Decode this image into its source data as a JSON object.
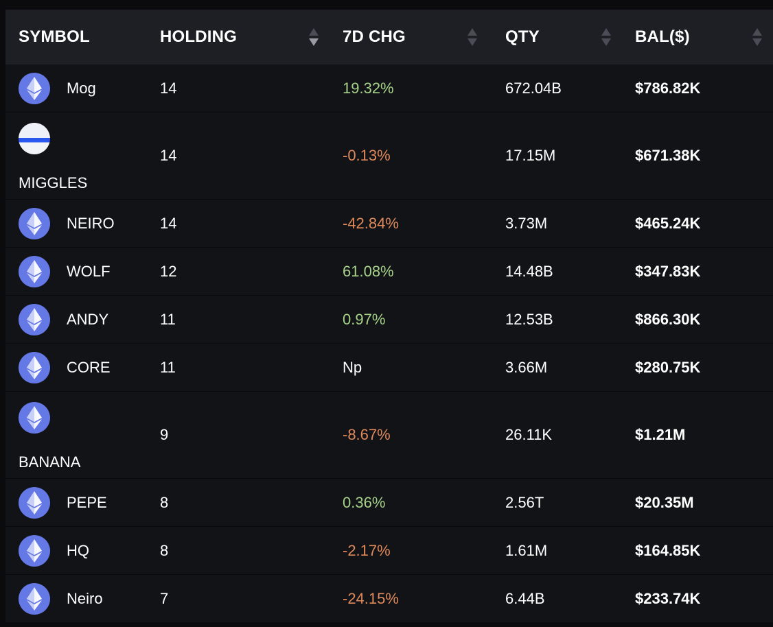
{
  "columns": {
    "symbol": "SYMBOL",
    "holding": "HOLDING",
    "chg": "7D CHG",
    "qty": "QTY",
    "bal": "BAL($)"
  },
  "colors": {
    "positive": "#a6d389",
    "negative": "#e0895a",
    "neutral": "#ffffff",
    "header_bg": "#1d1f24",
    "row_bg": "#121317",
    "coin": "#6478e6"
  },
  "rows": [
    {
      "symbol": "Mog",
      "icon": "ethereum-icon",
      "holding": "14",
      "chg": "19.32%",
      "chg_sign": "positive",
      "qty": "672.04B",
      "bal": "$786.82K",
      "layout": "inline"
    },
    {
      "symbol": "MIGGLES",
      "icon": "miggles-token-icon",
      "holding": "14",
      "chg": "-0.13%",
      "chg_sign": "negative",
      "qty": "17.15M",
      "bal": "$671.38K",
      "layout": "stacked"
    },
    {
      "symbol": "NEIRO",
      "icon": "ethereum-icon",
      "holding": "14",
      "chg": "-42.84%",
      "chg_sign": "negative",
      "qty": "3.73M",
      "bal": "$465.24K",
      "layout": "inline"
    },
    {
      "symbol": "WOLF",
      "icon": "ethereum-icon",
      "holding": "12",
      "chg": "61.08%",
      "chg_sign": "positive",
      "qty": "14.48B",
      "bal": "$347.83K",
      "layout": "inline"
    },
    {
      "symbol": "ANDY",
      "icon": "ethereum-icon",
      "holding": "11",
      "chg": "0.97%",
      "chg_sign": "positive",
      "qty": "12.53B",
      "bal": "$866.30K",
      "layout": "inline"
    },
    {
      "symbol": "CORE",
      "icon": "ethereum-icon",
      "holding": "11",
      "chg": "Np",
      "chg_sign": "neutral",
      "qty": "3.66M",
      "bal": "$280.75K",
      "layout": "inline"
    },
    {
      "symbol": "BANANA",
      "icon": "ethereum-icon",
      "holding": "9",
      "chg": "-8.67%",
      "chg_sign": "negative",
      "qty": "26.11K",
      "bal": "$1.21M",
      "layout": "stacked"
    },
    {
      "symbol": "PEPE",
      "icon": "ethereum-icon",
      "holding": "8",
      "chg": "0.36%",
      "chg_sign": "positive",
      "qty": "2.56T",
      "bal": "$20.35M",
      "layout": "inline"
    },
    {
      "symbol": "HQ",
      "icon": "ethereum-icon",
      "holding": "8",
      "chg": "-2.17%",
      "chg_sign": "negative",
      "qty": "1.61M",
      "bal": "$164.85K",
      "layout": "inline"
    },
    {
      "symbol": "Neiro",
      "icon": "ethereum-icon",
      "holding": "7",
      "chg": "-24.15%",
      "chg_sign": "negative",
      "qty": "6.44B",
      "bal": "$233.74K",
      "layout": "inline"
    }
  ]
}
